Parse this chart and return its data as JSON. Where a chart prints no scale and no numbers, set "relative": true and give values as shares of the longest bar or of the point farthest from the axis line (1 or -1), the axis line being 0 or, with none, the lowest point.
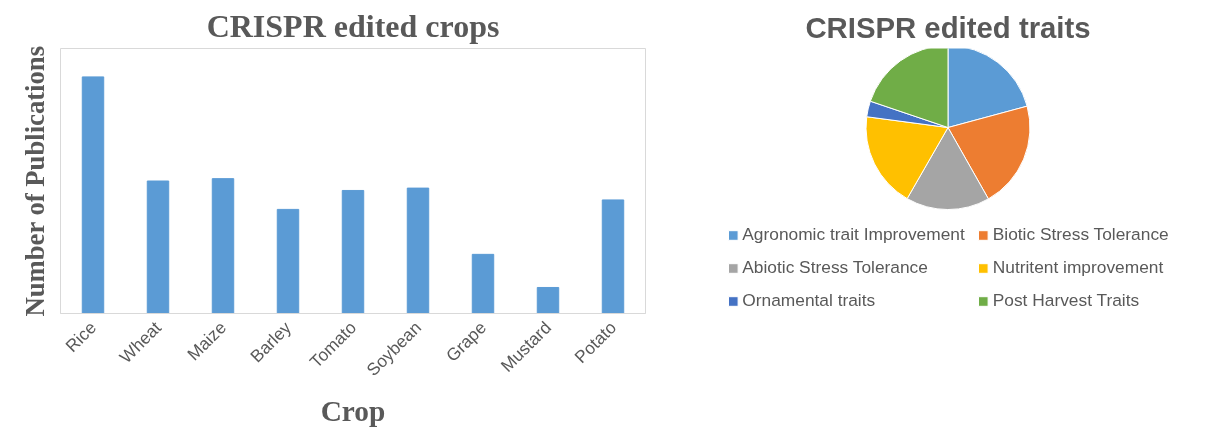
{
  "chart_data": [
    {
      "type": "bar",
      "title": "CRISPR edited crops",
      "xlabel": "Crop",
      "ylabel": "Number of Publications",
      "categories": [
        "Rice",
        "Wheat",
        "Maize",
        "Barley",
        "Tomato",
        "Soybean",
        "Grape",
        "Mustard",
        "Potato"
      ],
      "values": [
        1,
        0.56,
        0.57,
        0.44,
        0.52,
        0.53,
        0.25,
        0.11,
        0.48
      ],
      "color": "#5b9bd5",
      "relative": true
    },
    {
      "type": "pie",
      "title": "CRISPR edited traits",
      "categories": [
        "Agronomic trait Improvement",
        "Biotic Stress Tolerance",
        "Abiotic Stress Tolerance",
        "Nutritent improvement",
        "Ornamental traits",
        "Post Harvest Traits"
      ],
      "values": [
        20.8,
        21,
        16.5,
        18.8,
        3.1,
        19.8
      ],
      "colors": [
        "#5b9bd5",
        "#ed7d31",
        "#a5a5a5",
        "#ffc000",
        "#4472c4",
        "#70ad47"
      ],
      "legend": "bottom"
    }
  ]
}
